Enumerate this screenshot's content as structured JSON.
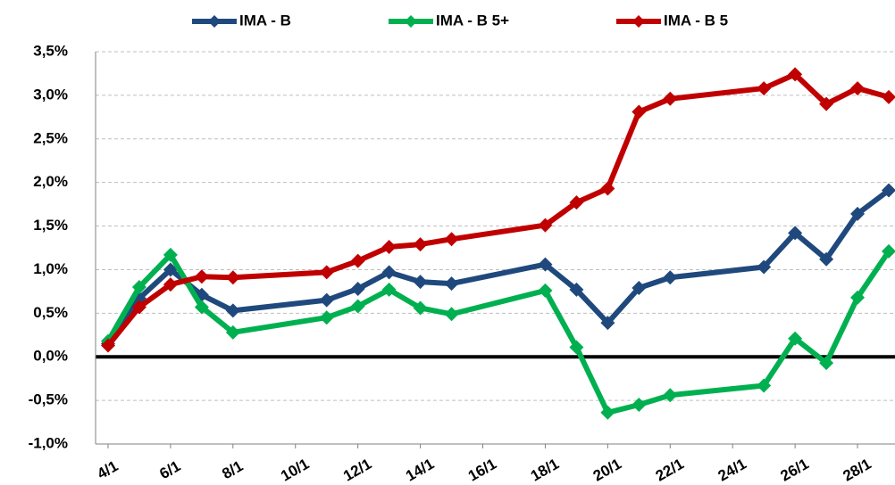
{
  "chart_data": {
    "type": "line",
    "x": [
      4,
      5,
      6,
      7,
      8,
      11,
      12,
      13,
      14,
      15,
      18,
      19,
      20,
      21,
      22,
      25,
      26,
      27,
      28,
      29
    ],
    "series": [
      {
        "name": "IMA - B",
        "color": "#1f497d",
        "values": [
          0.15,
          0.67,
          1.0,
          0.71,
          0.53,
          0.65,
          0.78,
          0.97,
          0.86,
          0.84,
          1.06,
          0.77,
          0.39,
          0.79,
          0.91,
          1.03,
          1.42,
          1.12,
          1.64,
          1.91
        ]
      },
      {
        "name": "IMA - B 5+",
        "color": "#00b050",
        "values": [
          0.18,
          0.8,
          1.17,
          0.57,
          0.28,
          0.45,
          0.58,
          0.77,
          0.56,
          0.49,
          0.76,
          0.11,
          -0.64,
          -0.55,
          -0.44,
          -0.33,
          0.21,
          -0.07,
          0.68,
          1.21
        ]
      },
      {
        "name": "IMA - B 5",
        "color": "#c00000",
        "values": [
          0.13,
          0.57,
          0.83,
          0.92,
          0.91,
          0.97,
          1.1,
          1.26,
          1.29,
          1.35,
          1.51,
          1.77,
          1.93,
          2.81,
          2.96,
          3.08,
          3.24,
          2.9,
          3.08,
          2.98
        ]
      }
    ],
    "xlim": [
      3.6,
      29.2
    ],
    "xticks": [
      {
        "value": 4,
        "label": "4/1"
      },
      {
        "value": 6,
        "label": "6/1"
      },
      {
        "value": 8,
        "label": "8/1"
      },
      {
        "value": 10,
        "label": "10/1"
      },
      {
        "value": 12,
        "label": "12/1"
      },
      {
        "value": 14,
        "label": "14/1"
      },
      {
        "value": 16,
        "label": "16/1"
      },
      {
        "value": 18,
        "label": "18/1"
      },
      {
        "value": 20,
        "label": "20/1"
      },
      {
        "value": 22,
        "label": "22/1"
      },
      {
        "value": 24,
        "label": "24/1"
      },
      {
        "value": 26,
        "label": "26/1"
      },
      {
        "value": 28,
        "label": "28/1"
      }
    ],
    "ylim": [
      -1.0,
      3.5
    ],
    "yticks": [
      {
        "value": -1.0,
        "label": "-1,0%"
      },
      {
        "value": -0.5,
        "label": "-0,5%"
      },
      {
        "value": 0,
        "label": "0,0%"
      },
      {
        "value": 0.5,
        "label": "0,5%"
      },
      {
        "value": 1.0,
        "label": "1,0%"
      },
      {
        "value": 1.5,
        "label": "1,5%"
      },
      {
        "value": 2.0,
        "label": "2,0%"
      },
      {
        "value": 2.5,
        "label": "2,5%"
      },
      {
        "value": 3.0,
        "label": "3,0%"
      },
      {
        "value": 3.5,
        "label": "3,5%"
      }
    ],
    "grid": true,
    "legend": "top"
  }
}
